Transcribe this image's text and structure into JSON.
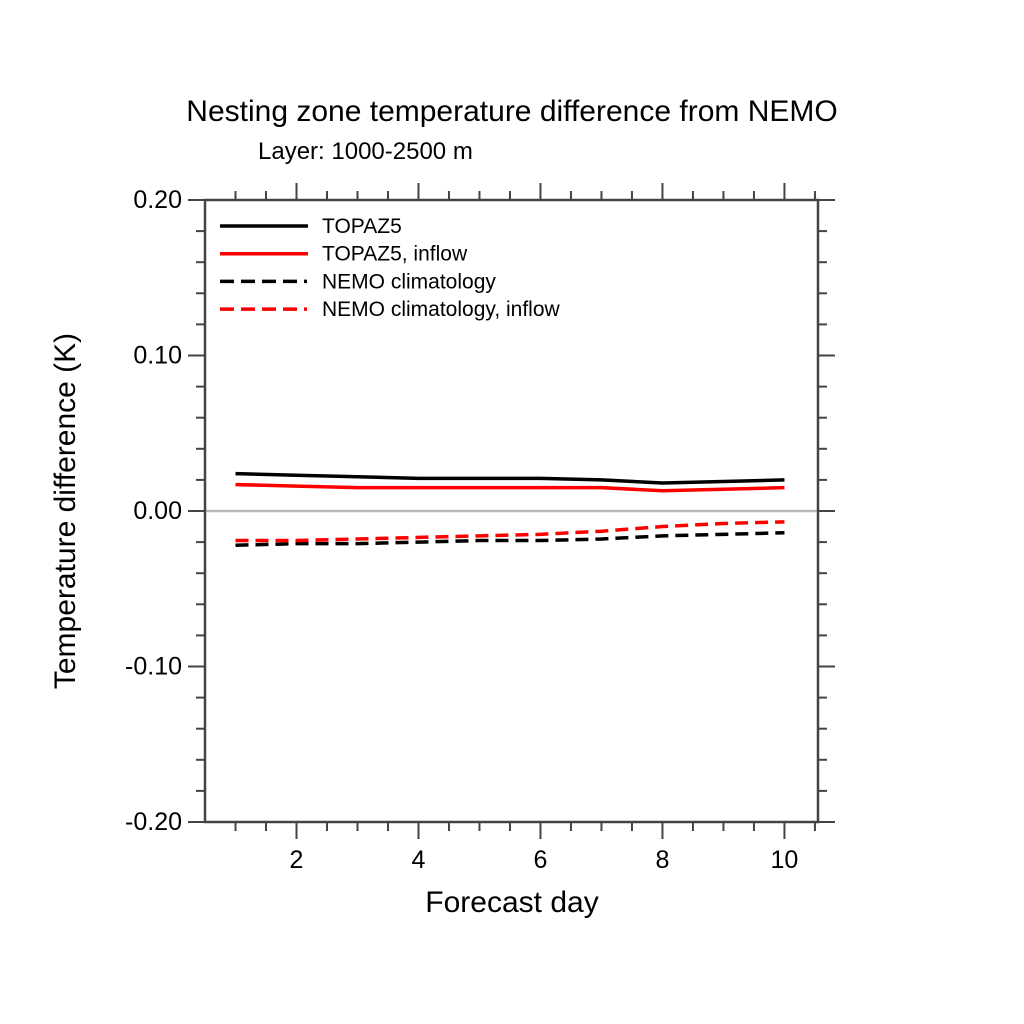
{
  "header": {
    "title": "Nesting zone temperature difference from NEMO",
    "subtitle": "Layer: 1000-2500 m"
  },
  "colors": {
    "black_series": "#000000",
    "red_series": "#ff0000",
    "axis": "#444444",
    "zero_line": "#b9b9b9",
    "text": "#000000"
  },
  "legend": {
    "position": "top-left-inside",
    "entries": [
      {
        "label": "TOPAZ5",
        "color": "#000000",
        "style": "solid"
      },
      {
        "label": "TOPAZ5, inflow",
        "color": "#ff0000",
        "style": "solid"
      },
      {
        "label": "NEMO climatology",
        "color": "#000000",
        "style": "dashed"
      },
      {
        "label": "NEMO climatology, inflow",
        "color": "#ff0000",
        "style": "dashed"
      }
    ]
  },
  "chart_data": {
    "type": "line",
    "title": "Nesting zone temperature difference from NEMO",
    "subtitle": "Layer: 1000-2500 m",
    "xlabel": "Forecast day",
    "ylabel": "Temperature difference (K)",
    "x": [
      1,
      2,
      3,
      4,
      5,
      6,
      7,
      8,
      9,
      10
    ],
    "series": [
      {
        "name": "TOPAZ5",
        "color": "#000000",
        "style": "solid",
        "values": [
          0.024,
          0.023,
          0.022,
          0.021,
          0.021,
          0.021,
          0.02,
          0.018,
          0.019,
          0.02
        ]
      },
      {
        "name": "TOPAZ5, inflow",
        "color": "#ff0000",
        "style": "solid",
        "values": [
          0.017,
          0.016,
          0.015,
          0.015,
          0.015,
          0.015,
          0.015,
          0.013,
          0.014,
          0.015
        ]
      },
      {
        "name": "NEMO climatology",
        "color": "#000000",
        "style": "dashed",
        "values": [
          -0.022,
          -0.021,
          -0.021,
          -0.02,
          -0.019,
          -0.019,
          -0.018,
          -0.016,
          -0.015,
          -0.014
        ]
      },
      {
        "name": "NEMO climatology, inflow",
        "color": "#ff0000",
        "style": "dashed",
        "values": [
          -0.019,
          -0.019,
          -0.018,
          -0.017,
          -0.016,
          -0.015,
          -0.013,
          -0.01,
          -0.008,
          -0.007
        ]
      }
    ],
    "xlim": [
      0.5,
      10.55
    ],
    "ylim": [
      -0.2,
      0.2
    ],
    "x_ticks": [
      2,
      4,
      6,
      8,
      10
    ],
    "x_tick_labels": [
      "2",
      "4",
      "6",
      "8",
      "10"
    ],
    "x_minor_step": 0.5,
    "y_ticks": [
      -0.2,
      -0.1,
      0.0,
      0.1,
      0.2
    ],
    "y_tick_labels": [
      "-0.20",
      "-0.10",
      "0.00",
      "0.10",
      "0.20"
    ],
    "y_minor_step": 0.02,
    "grid": false,
    "zero_line": true,
    "legend_position": "top-left-inside"
  }
}
